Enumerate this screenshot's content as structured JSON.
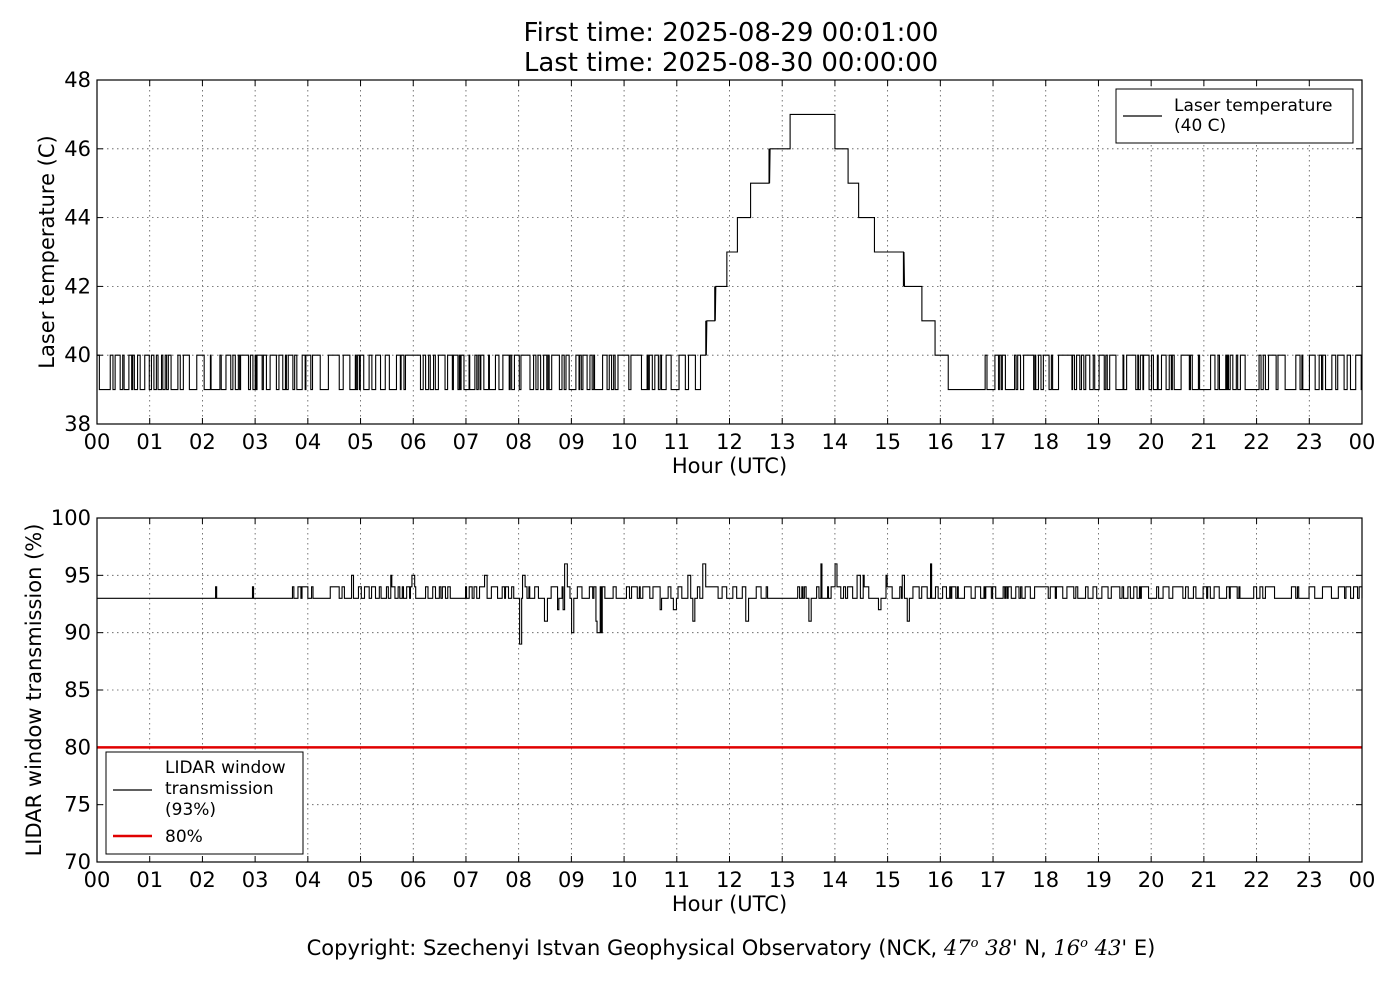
{
  "title": {
    "line1": "First time: 2025-08-29 00:01:00",
    "line2": "Last time: 2025-08-30 00:00:00"
  },
  "copyright": {
    "prefix": "Copyright: Szechenyi Istvan Geophysical Observatory (NCK, ",
    "lat_deg": "47",
    "lat_sym": "o",
    "lat_min": "38'",
    "lat_dir": "N,",
    "lon_deg": "16",
    "lon_sym": "o",
    "lon_min": "43'",
    "lon_dir": "E)"
  },
  "chart_data": [
    {
      "type": "line",
      "xlabel": "Hour (UTC)",
      "ylabel": "Laser temperature (C)",
      "xlim": [
        0,
        24
      ],
      "ylim": [
        38,
        48
      ],
      "grid": true,
      "x_ticks": [
        "00",
        "01",
        "02",
        "03",
        "04",
        "05",
        "06",
        "07",
        "08",
        "09",
        "10",
        "11",
        "12",
        "13",
        "14",
        "15",
        "16",
        "17",
        "18",
        "19",
        "20",
        "21",
        "22",
        "23",
        "00"
      ],
      "y_ticks": [
        "38",
        "40",
        "42",
        "44",
        "46",
        "48"
      ],
      "legend": {
        "placement": "upper-right",
        "entries": [
          {
            "label_line1": "Laser temperature",
            "label_line2": "(40 C)",
            "color": "#000000"
          }
        ]
      },
      "series": [
        {
          "name": "Laser temperature (40 C)",
          "color": "#000000",
          "step_profile": [
            [
              0.0,
              40
            ],
            [
              11.45,
              40
            ],
            [
              11.55,
              41
            ],
            [
              11.72,
              42
            ],
            [
              11.95,
              43
            ],
            [
              12.15,
              44
            ],
            [
              12.4,
              45
            ],
            [
              12.75,
              46
            ],
            [
              13.15,
              47
            ],
            [
              14.0,
              46
            ],
            [
              14.25,
              45
            ],
            [
              14.45,
              44
            ],
            [
              14.75,
              43
            ],
            [
              15.3,
              42
            ],
            [
              15.65,
              41
            ],
            [
              15.9,
              40
            ],
            [
              16.15,
              39
            ],
            [
              16.85,
              39
            ]
          ],
          "noise_segments": [
            {
              "from": 0.0,
              "to": 11.45,
              "low": 39,
              "high": 40
            },
            {
              "from": 16.85,
              "to": 24.0,
              "low": 39,
              "high": 40
            }
          ]
        }
      ]
    },
    {
      "type": "line",
      "xlabel": "Hour (UTC)",
      "ylabel": "LIDAR window transmission (%)",
      "xlim": [
        0,
        24
      ],
      "ylim": [
        70,
        100
      ],
      "grid": true,
      "x_ticks": [
        "00",
        "01",
        "02",
        "03",
        "04",
        "05",
        "06",
        "07",
        "08",
        "09",
        "10",
        "11",
        "12",
        "13",
        "14",
        "15",
        "16",
        "17",
        "18",
        "19",
        "20",
        "21",
        "22",
        "23",
        "00"
      ],
      "y_ticks": [
        "70",
        "75",
        "80",
        "85",
        "90",
        "95",
        "100"
      ],
      "legend": {
        "placement": "lower-left",
        "entries": [
          {
            "label_line1": "LIDAR window",
            "label_line2": "transmission",
            "label_line3": "(93%)",
            "color": "#000000"
          },
          {
            "label_line1": "80%",
            "color": "#e00000"
          }
        ]
      },
      "series": [
        {
          "name": "LIDAR window transmission (93%)",
          "color": "#000000",
          "baseline": 93,
          "segments": [
            {
              "from": 0.0,
              "to": 3.6,
              "low": 93,
              "high": 93
            },
            {
              "from": 3.6,
              "to": 8.0,
              "low": 92,
              "high": 95
            },
            {
              "from": 8.0,
              "to": 11.8,
              "low": 89,
              "high": 96
            },
            {
              "from": 11.8,
              "to": 16.2,
              "low": 91,
              "high": 96
            },
            {
              "from": 16.2,
              "to": 21.5,
              "low": 93,
              "high": 94
            },
            {
              "from": 21.5,
              "to": 24.0,
              "low": 93,
              "high": 94
            }
          ],
          "occasional_spikes": [
            2.25,
            2.95,
            3.6
          ]
        },
        {
          "name": "80%",
          "color": "#e00000",
          "values": [
            80,
            80
          ],
          "x": [
            0,
            24
          ]
        }
      ]
    }
  ]
}
